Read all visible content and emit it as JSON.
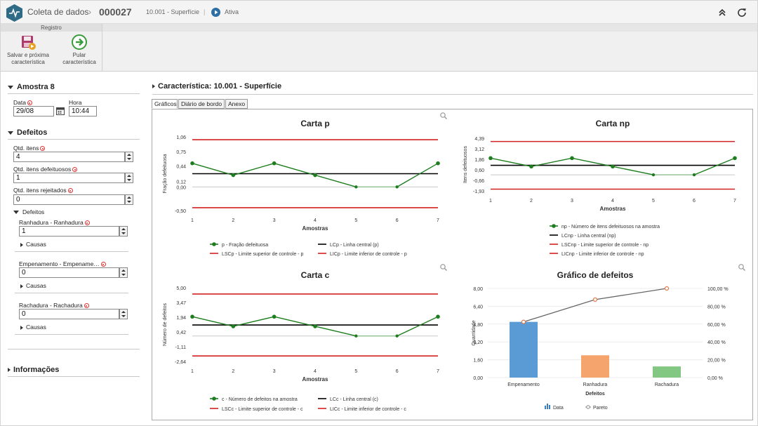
{
  "header": {
    "module": "Coleta de dados",
    "separator": "›",
    "record": "000027",
    "name": "10.001 - Superfície",
    "divider": "|",
    "status": "Ativa"
  },
  "ribbon": {
    "group": "Registro",
    "save_next": [
      "Salvar e próxima",
      "característica"
    ],
    "skip": [
      "Pular",
      "característica"
    ]
  },
  "sample": {
    "title": "Amostra 8",
    "date_label": "Data",
    "date": "29/08",
    "time_label": "Hora",
    "time": "10:44"
  },
  "defects": {
    "title": "Defeitos",
    "qty_label": "Qtd. itens",
    "qty": "4",
    "defective_label": "Qtd. itens defeituosos",
    "defective": "1",
    "rejected_label": "Qtd. itens rejeitados",
    "rejected": "0",
    "sub_title": "Defeitos",
    "items": [
      {
        "label": "Ranhadura - Ranhadura",
        "value": "1",
        "causes": "Causas"
      },
      {
        "label": "Empenamento - Empename…",
        "value": "0",
        "causes": "Causas"
      },
      {
        "label": "Rachadura - Rachadura",
        "value": "0",
        "causes": "Causas"
      }
    ]
  },
  "info": {
    "title": "Informações"
  },
  "characteristic": {
    "title": "Característica: 10.001 - Superfície"
  },
  "tabs": [
    "Gráficos",
    "Diário de bordo",
    "Anexo"
  ],
  "colors": {
    "green": "#1e7d1e",
    "center": "#000000",
    "limit": "#d32020",
    "accent": "#2d6ea5",
    "bar_a": "#5b9bd5",
    "bar_b": "#f4a46c",
    "bar_c": "#82c882"
  },
  "chart_data": [
    {
      "type": "line",
      "title": "Carta p",
      "xlabel": "Amostras",
      "ylabel": "Fração defeituosa",
      "x": [
        1,
        2,
        3,
        4,
        5,
        6,
        7
      ],
      "yticks": [
        "1,06",
        "0,75",
        "0,44",
        "0,12",
        "0,00",
        "-0,50"
      ],
      "ytick_values": [
        1.06,
        0.75,
        0.44,
        0.12,
        0,
        -0.5
      ],
      "ylim": [
        -0.5,
        1.06
      ],
      "series": [
        {
          "name": "p - Fração defeituosa",
          "values": [
            0.5,
            0.25,
            0.5,
            0.25,
            0,
            0,
            0.5
          ]
        },
        {
          "name": "LCp - Linha central (p)",
          "value": 0.28
        },
        {
          "name": "LSCp - Limite superior de controle - p",
          "value": 1.0
        },
        {
          "name": "LICp - Limite inferior de controle - p",
          "value": -0.44
        }
      ]
    },
    {
      "type": "line",
      "title": "Carta np",
      "xlabel": "Amostras",
      "ylabel": "Itens defeituosos",
      "x": [
        1,
        2,
        3,
        4,
        5,
        6,
        7
      ],
      "yticks": [
        "4,39",
        "3,12",
        "1,86",
        "0,60",
        "-0,66",
        "-1,93"
      ],
      "ytick_values": [
        4.39,
        3.12,
        1.86,
        0.6,
        -0.66,
        -1.93
      ],
      "ylim": [
        -1.93,
        4.39
      ],
      "series": [
        {
          "name": "np - Número de itens defeituosos na amostra",
          "values": [
            2,
            1,
            2,
            1,
            0,
            0,
            2
          ]
        },
        {
          "name": "LCnp - Linha central (np)",
          "value": 1.14
        },
        {
          "name": "LSCnp - Limite superior de controle - np",
          "value": 4.0
        },
        {
          "name": "LICnp - Limite inferior de controle - np",
          "value": -1.72
        }
      ]
    },
    {
      "type": "line",
      "title": "Carta c",
      "xlabel": "Amostras",
      "ylabel": "Número de defeitos",
      "x": [
        1,
        2,
        3,
        4,
        5,
        6,
        7
      ],
      "yticks": [
        "5,00",
        "3,47",
        "1,94",
        "0,42",
        "-1,11",
        "-2,64"
      ],
      "ytick_values": [
        5,
        3.47,
        1.94,
        0.42,
        -1.11,
        -2.64
      ],
      "ylim": [
        -2.64,
        5
      ],
      "series": [
        {
          "name": "c - Número de defeitos na amostra",
          "values": [
            2,
            1,
            2,
            1,
            0,
            0,
            2
          ]
        },
        {
          "name": "LCc - Linha central (c)",
          "value": 1.14
        },
        {
          "name": "LSCc - Limite superior de controle - c",
          "value": 4.35
        },
        {
          "name": "LICc - Limite inferior de controle - c",
          "value": -2.07
        }
      ]
    },
    {
      "type": "bar",
      "title": "Gráfico de defeitos",
      "xlabel": "Defeitos",
      "ylabel": "Quantidade",
      "categories": [
        "Empenamento",
        "Ranhadura",
        "Rachadura"
      ],
      "yticks": [
        "8,00",
        "6,40",
        "4,80",
        "3,20",
        "1,60",
        "0,00"
      ],
      "ylim": [
        0,
        8
      ],
      "y2ticks": [
        "100,00 %",
        "80,00 %",
        "60,00 %",
        "40,00 %",
        "20,00 %",
        "0,00 %"
      ],
      "y2lim": [
        0,
        100
      ],
      "series": [
        {
          "name": "Data",
          "values": [
            5,
            2,
            1
          ]
        },
        {
          "name": "Pareto",
          "values": [
            62.5,
            87.5,
            100
          ]
        }
      ]
    }
  ]
}
